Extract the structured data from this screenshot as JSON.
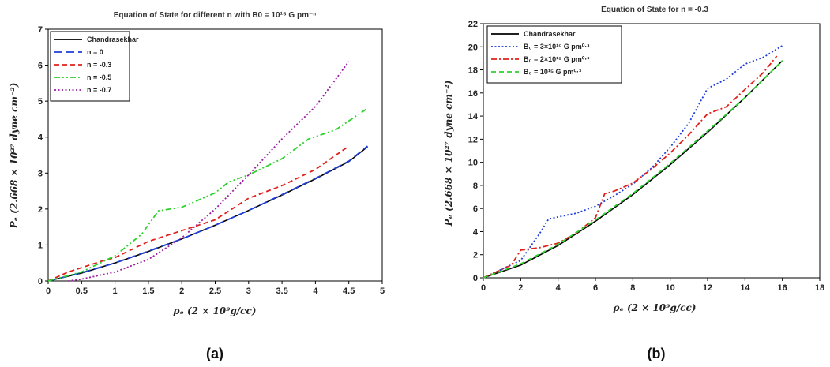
{
  "panel_labels": [
    "(a)",
    "(b)"
  ],
  "chart_data": [
    {
      "type": "line",
      "title": "Equation of State for different n with B0 = 10¹⁵ G pm⁻ⁿ",
      "xlabel": "ρₑ (2 × 10⁹g/cc)",
      "ylabel": "Pₑ (2.668 × 10²⁷ dyne cm⁻²)",
      "xlim": [
        0,
        5
      ],
      "ylim": [
        0,
        7
      ],
      "xticks": [
        "0",
        "0.5",
        "1",
        "1.5",
        "2",
        "2.5",
        "3",
        "3.5",
        "4",
        "4.5",
        "5"
      ],
      "yticks": [
        "0",
        "1",
        "2",
        "3",
        "4",
        "5",
        "6",
        "7"
      ],
      "legend_position": "top-left",
      "series": [
        {
          "name": "Chandrasekhar",
          "color": "#000000",
          "dash": "solid",
          "x": [
            0,
            0.5,
            1,
            1.5,
            2,
            2.5,
            3,
            3.5,
            4,
            4.5,
            4.78
          ],
          "y": [
            0,
            0.22,
            0.5,
            0.82,
            1.17,
            1.55,
            1.96,
            2.39,
            2.84,
            3.32,
            3.73
          ]
        },
        {
          "name": "n = 0",
          "color": "#1f3fd6",
          "dash": "longdash",
          "x": [
            0,
            0.5,
            1,
            1.5,
            2,
            2.5,
            3,
            3.5,
            4,
            4.5,
            4.78
          ],
          "y": [
            0,
            0.23,
            0.5,
            0.83,
            1.17,
            1.55,
            1.96,
            2.4,
            2.85,
            3.33,
            3.75
          ]
        },
        {
          "name": "n = -0.3",
          "color": "#e0201c",
          "dash": "dash",
          "x": [
            0,
            0.3,
            0.8,
            1.0,
            1.5,
            2,
            2.5,
            3,
            3.5,
            4,
            4.5
          ],
          "y": [
            0,
            0.25,
            0.55,
            0.65,
            1.1,
            1.4,
            1.7,
            2.3,
            2.65,
            3.1,
            3.75
          ]
        },
        {
          "name": "n = -0.5",
          "color": "#2ed12e",
          "dash": "dashdotdot",
          "x": [
            0,
            0.5,
            1,
            1.4,
            1.65,
            2,
            2.5,
            2.7,
            3,
            3.5,
            3.9,
            4.3,
            4.78
          ],
          "y": [
            0,
            0.25,
            0.7,
            1.3,
            1.95,
            2.05,
            2.45,
            2.75,
            2.95,
            3.4,
            3.95,
            4.2,
            4.8
          ]
        },
        {
          "name": "n = -0.7",
          "color": "#9b1fa3",
          "dash": "dot",
          "x": [
            0.3,
            0.5,
            1,
            1.5,
            2,
            2.5,
            3,
            3.5,
            4,
            4.5
          ],
          "y": [
            0,
            0.05,
            0.25,
            0.6,
            1.2,
            2.0,
            2.95,
            3.95,
            4.85,
            6.1
          ]
        }
      ]
    },
    {
      "type": "line",
      "title": "Equation of State for n = -0.3",
      "xlabel": "ρₑ (2 × 10⁹g/cc)",
      "ylabel": "Pₑ (2.668 × 10²⁷ dyne cm⁻²)",
      "xlim": [
        0,
        18
      ],
      "ylim": [
        0,
        22
      ],
      "xticks": [
        "0",
        "2",
        "4",
        "6",
        "8",
        "10",
        "12",
        "14",
        "16",
        "18"
      ],
      "yticks": [
        "0",
        "2",
        "4",
        "6",
        "8",
        "10",
        "12",
        "14",
        "16",
        "18",
        "20",
        "22"
      ],
      "legend_position": "top-left",
      "series": [
        {
          "name": "Chandrasekhar",
          "color": "#000000",
          "dash": "solid",
          "x": [
            0,
            2,
            4,
            6,
            8,
            10,
            12,
            14,
            16
          ],
          "y": [
            0,
            1.1,
            2.8,
            4.9,
            7.2,
            9.8,
            12.6,
            15.6,
            18.8
          ]
        },
        {
          "name": "B₀ = 3×10¹⁵ G pm⁰·³",
          "color": "#1f3fd6",
          "dash": "dot",
          "x": [
            0,
            2,
            3,
            3.5,
            5,
            6,
            7,
            8,
            9,
            10,
            11,
            12,
            13,
            14,
            15,
            16
          ],
          "y": [
            0,
            1.5,
            3.8,
            5.1,
            5.6,
            6.2,
            7.1,
            8.1,
            9.5,
            11.3,
            13.4,
            16.4,
            17.2,
            18.5,
            19.1,
            20.1
          ]
        },
        {
          "name": "B₀ = 2×10¹⁵ G pm⁰·³",
          "color": "#e0201c",
          "dash": "dashdot",
          "x": [
            0,
            1.5,
            2,
            3,
            4,
            5,
            6,
            6.5,
            7,
            8,
            9,
            10,
            11,
            12,
            13,
            14,
            15,
            15.7
          ],
          "y": [
            0,
            1.1,
            2.4,
            2.6,
            3.0,
            3.9,
            5.2,
            7.3,
            7.5,
            8.2,
            9.4,
            10.8,
            12.4,
            14.2,
            14.8,
            16.3,
            17.8,
            19.2
          ]
        },
        {
          "name": "B₀ = 10¹⁵ G pm⁰·³",
          "color": "#2ed12e",
          "dash": "dash",
          "x": [
            0,
            2,
            4,
            6,
            8,
            10,
            12,
            14,
            16
          ],
          "y": [
            0,
            1.2,
            2.9,
            5.0,
            7.3,
            9.9,
            12.7,
            15.6,
            18.8
          ]
        }
      ]
    }
  ]
}
